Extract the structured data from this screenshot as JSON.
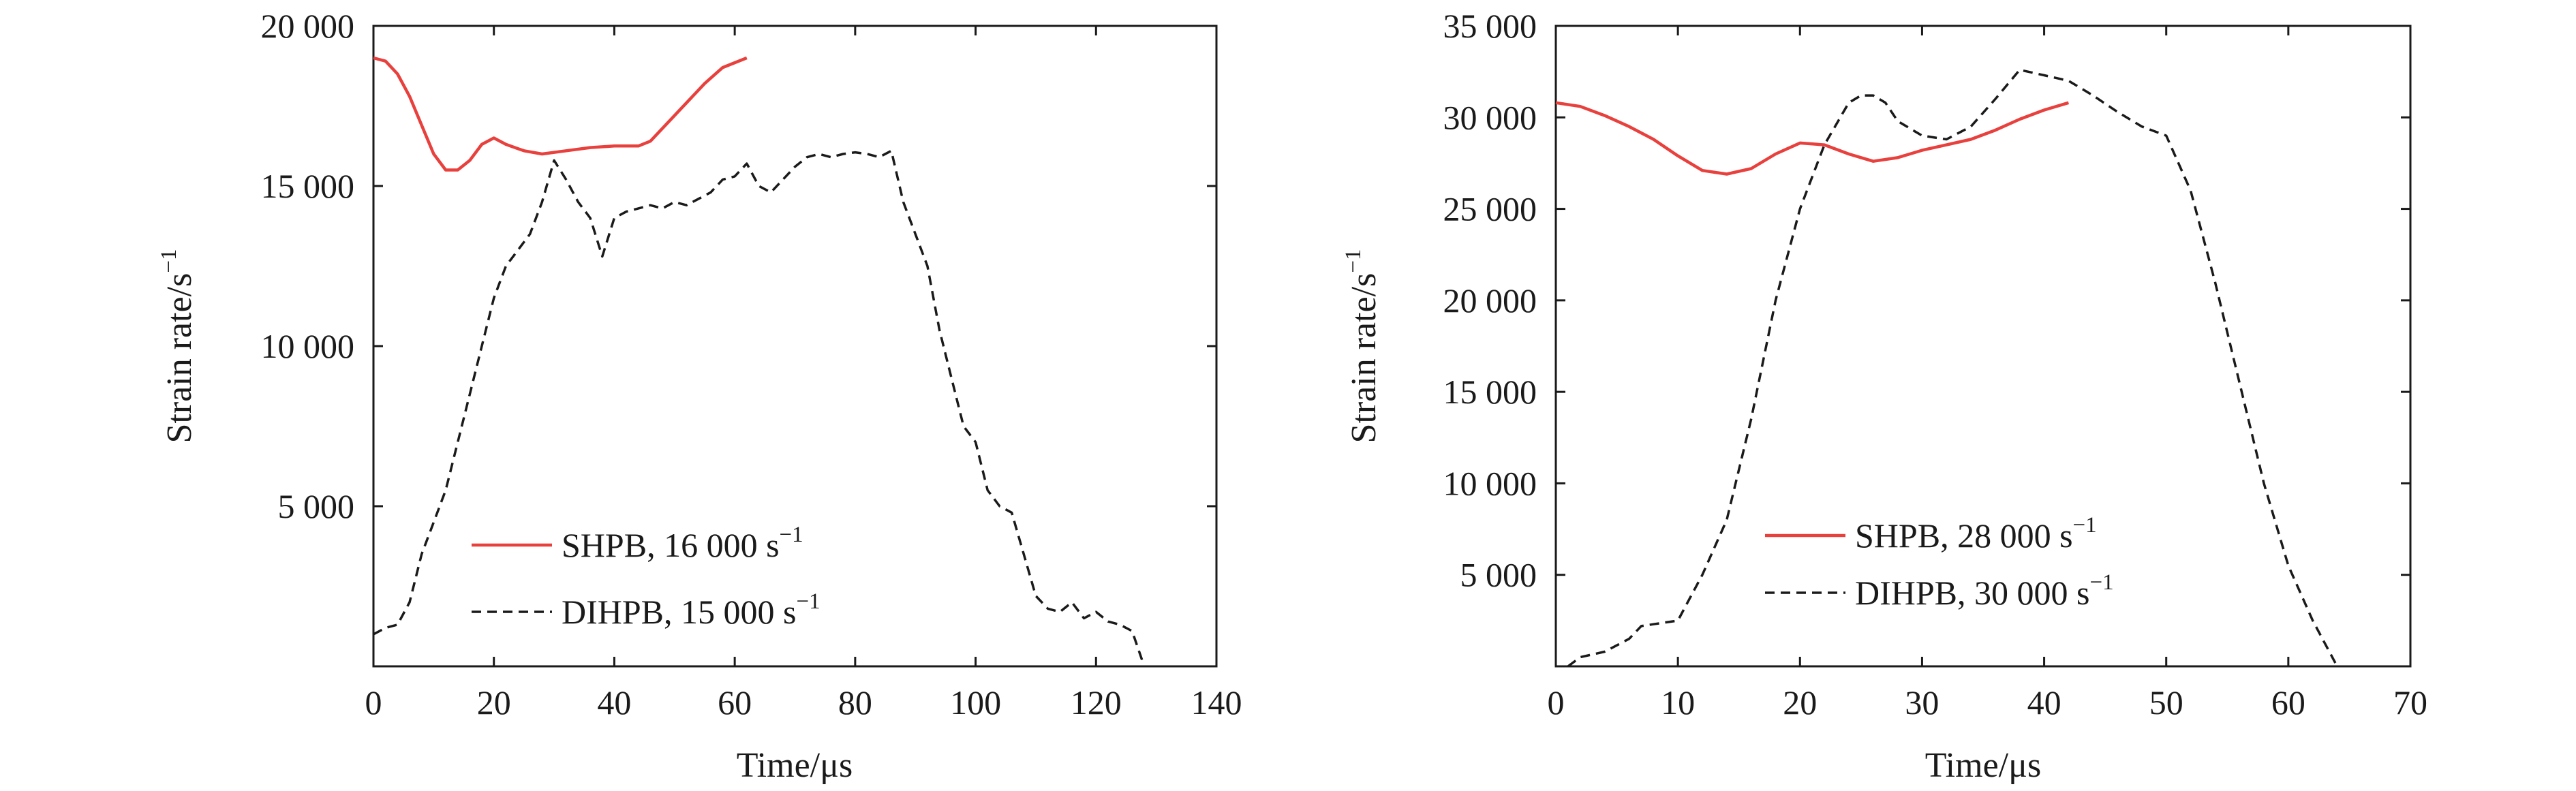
{
  "colors": {
    "shpb": "#e8403d",
    "dihpb": "#1a1a1a",
    "axis": "#1a1a1a"
  },
  "chart_data": [
    {
      "type": "line",
      "xlabel": "Time/μs",
      "ylabel": "Strain rate/s",
      "ylabel_sup": "−1",
      "xlim": [
        0,
        140
      ],
      "ylim": [
        0,
        20000
      ],
      "xticks": [
        0,
        20,
        40,
        60,
        80,
        100,
        120,
        140
      ],
      "xtick_labels": [
        "0",
        "20",
        "40",
        "60",
        "80",
        "100",
        "120",
        "140"
      ],
      "yticks": [
        5000,
        10000,
        15000,
        20000
      ],
      "ytick_labels": [
        "5 000",
        "10 000",
        "15 000",
        "20 000"
      ],
      "grid": false,
      "legend_position": "bottom-center",
      "series": [
        {
          "name": "SHPB, 16 000 s",
          "name_sup": "−1",
          "color": "#e8403d",
          "dash": "solid",
          "x": [
            0,
            2,
            4,
            6,
            8,
            10,
            12,
            14,
            16,
            18,
            20,
            22,
            25,
            28,
            32,
            36,
            40,
            44,
            46,
            50,
            55,
            58,
            62
          ],
          "y": [
            19000,
            18900,
            18500,
            17800,
            16900,
            16000,
            15500,
            15500,
            15800,
            16300,
            16500,
            16300,
            16100,
            16000,
            16100,
            16200,
            16250,
            16250,
            16400,
            17200,
            18200,
            18700,
            19000
          ]
        },
        {
          "name": "DIHPB, 15 000 s",
          "name_sup": "−1",
          "color": "#1a1a1a",
          "dash": "dashed",
          "x": [
            0,
            2,
            4,
            6,
            8,
            10,
            12,
            14,
            16,
            18,
            20,
            22,
            24,
            26,
            28,
            30,
            32,
            34,
            36,
            38,
            40,
            42,
            44,
            46,
            48,
            50,
            52,
            54,
            56,
            58,
            60,
            62,
            64,
            66,
            68,
            70,
            72,
            74,
            76,
            78,
            80,
            82,
            84,
            86,
            88,
            90,
            92,
            94,
            96,
            98,
            100,
            102,
            104,
            106,
            108,
            110,
            112,
            114,
            116,
            118,
            120,
            122,
            124,
            126,
            128
          ],
          "y": [
            1000,
            1200,
            1300,
            2000,
            3500,
            4500,
            5500,
            7000,
            8500,
            10000,
            11500,
            12500,
            13000,
            13500,
            14500,
            15800,
            15200,
            14500,
            14000,
            12800,
            14000,
            14200,
            14300,
            14400,
            14300,
            14500,
            14400,
            14600,
            14800,
            15200,
            15300,
            15700,
            15000,
            14800,
            15200,
            15600,
            15900,
            16000,
            15900,
            16000,
            16050,
            16000,
            15900,
            16100,
            14500,
            13500,
            12500,
            10500,
            9000,
            7500,
            7000,
            5500,
            5000,
            4800,
            3500,
            2200,
            1800,
            1700,
            2000,
            1500,
            1700,
            1400,
            1300,
            1100,
            0
          ]
        }
      ]
    },
    {
      "type": "line",
      "xlabel": "Time/μs",
      "ylabel": "Strain rate/s",
      "ylabel_sup": "−1",
      "xlim": [
        0,
        70
      ],
      "ylim": [
        0,
        35000
      ],
      "xticks": [
        0,
        10,
        20,
        30,
        40,
        50,
        60,
        70
      ],
      "xtick_labels": [
        "0",
        "10",
        "20",
        "30",
        "40",
        "50",
        "60",
        "70"
      ],
      "yticks": [
        5000,
        10000,
        15000,
        20000,
        25000,
        30000,
        35000
      ],
      "ytick_labels": [
        "5 000",
        "10 000",
        "15 000",
        "20 000",
        "25 000",
        "30 000",
        "35 000"
      ],
      "grid": false,
      "legend_position": "bottom-center",
      "series": [
        {
          "name": "SHPB, 28 000 s",
          "name_sup": "−1",
          "color": "#e8403d",
          "dash": "solid",
          "x": [
            0,
            2,
            4,
            6,
            8,
            10,
            12,
            14,
            16,
            18,
            20,
            22,
            24,
            26,
            28,
            30,
            32,
            34,
            36,
            38,
            40,
            42
          ],
          "y": [
            30800,
            30600,
            30100,
            29500,
            28800,
            27900,
            27100,
            26900,
            27200,
            28000,
            28600,
            28500,
            28000,
            27600,
            27800,
            28200,
            28500,
            28800,
            29300,
            29900,
            30400,
            30800
          ]
        },
        {
          "name": "DIHPB, 30 000 s",
          "name_sup": "−1",
          "color": "#1a1a1a",
          "dash": "dashed",
          "x": [
            1,
            2,
            4,
            6,
            7,
            8,
            10,
            12,
            14,
            16,
            18,
            20,
            22,
            24,
            25,
            26,
            27,
            28,
            30,
            32,
            34,
            36,
            38,
            40,
            42,
            44,
            46,
            48,
            50,
            52,
            54,
            56,
            58,
            60,
            62,
            64
          ],
          "y": [
            0,
            500,
            800,
            1500,
            2200,
            2300,
            2500,
            5000,
            8000,
            13500,
            20000,
            25000,
            28500,
            30800,
            31200,
            31200,
            30800,
            29800,
            29000,
            28800,
            29500,
            31000,
            32600,
            32300,
            32000,
            31200,
            30300,
            29500,
            29000,
            26000,
            21000,
            15500,
            10000,
            5500,
            2500,
            0
          ]
        }
      ]
    }
  ]
}
